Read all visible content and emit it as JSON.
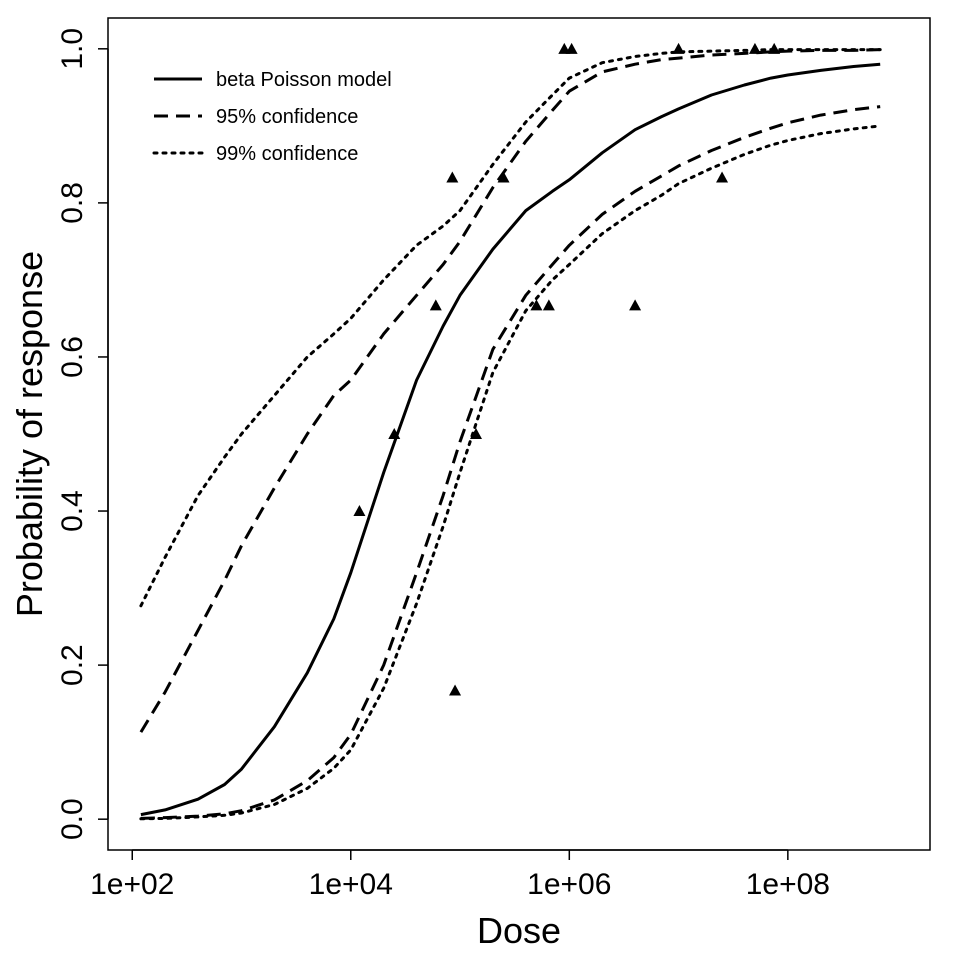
{
  "chart_data": {
    "type": "line",
    "xlabel": "Dose",
    "ylabel": "Probability of response",
    "xscale": "log10",
    "xlim": [
      60,
      2000000000
    ],
    "ylim": [
      -0.04,
      1.04
    ],
    "xticks": [
      100,
      10000,
      1000000,
      100000000
    ],
    "xtick_labels": [
      "1e+02",
      "1e+04",
      "1e+06",
      "1e+08"
    ],
    "yticks": [
      0.0,
      0.2,
      0.4,
      0.6,
      0.8,
      1.0
    ],
    "ytick_labels": [
      "0.0",
      "0.2",
      "0.4",
      "0.6",
      "0.8",
      "1.0"
    ],
    "legend_position": "top-left",
    "grid": false,
    "series": [
      {
        "name": "beta Poisson model",
        "style": "solid",
        "x": [
          120,
          200,
          400,
          700,
          1000,
          2000,
          4000,
          7000,
          10000,
          20000,
          40000,
          70000,
          100000,
          200000,
          400000,
          700000,
          1000000,
          2000000,
          4000000,
          7000000,
          10000000,
          20000000,
          40000000,
          70000000,
          100000000,
          200000000,
          400000000,
          700000000
        ],
        "y": [
          0.006,
          0.012,
          0.026,
          0.045,
          0.065,
          0.12,
          0.19,
          0.26,
          0.32,
          0.45,
          0.57,
          0.64,
          0.68,
          0.74,
          0.79,
          0.815,
          0.83,
          0.865,
          0.895,
          0.912,
          0.922,
          0.94,
          0.953,
          0.962,
          0.966,
          0.972,
          0.977,
          0.98
        ]
      },
      {
        "name": "95% confidence",
        "style": "dashed",
        "x": [
          120,
          200,
          400,
          700,
          1000,
          2000,
          4000,
          7000,
          10000,
          20000,
          40000,
          70000,
          100000,
          200000,
          400000,
          700000,
          1000000,
          2000000,
          4000000,
          7000000,
          10000000,
          20000000,
          40000000,
          70000000,
          100000000,
          200000000,
          400000000,
          700000000
        ],
        "y": [
          0.113,
          0.165,
          0.245,
          0.31,
          0.355,
          0.43,
          0.5,
          0.55,
          0.57,
          0.63,
          0.68,
          0.72,
          0.75,
          0.82,
          0.88,
          0.92,
          0.945,
          0.97,
          0.98,
          0.986,
          0.988,
          0.992,
          0.994,
          0.996,
          0.997,
          0.998,
          0.998,
          0.999
        ]
      },
      {
        "name": "",
        "style": "dashed",
        "x": [
          120,
          200,
          400,
          700,
          1000,
          2000,
          4000,
          7000,
          10000,
          20000,
          40000,
          70000,
          100000,
          200000,
          400000,
          700000,
          1000000,
          2000000,
          4000000,
          7000000,
          10000000,
          20000000,
          40000000,
          70000000,
          100000000,
          200000000,
          400000000,
          700000000
        ],
        "y": [
          0.001,
          0.002,
          0.004,
          0.007,
          0.011,
          0.025,
          0.05,
          0.08,
          0.11,
          0.2,
          0.32,
          0.42,
          0.49,
          0.61,
          0.68,
          0.72,
          0.745,
          0.785,
          0.815,
          0.835,
          0.848,
          0.868,
          0.885,
          0.897,
          0.904,
          0.914,
          0.921,
          0.925
        ]
      },
      {
        "name": "99% confidence",
        "style": "dotted",
        "x": [
          120,
          200,
          400,
          700,
          1000,
          2000,
          4000,
          7000,
          10000,
          20000,
          40000,
          70000,
          100000,
          200000,
          400000,
          700000,
          1000000,
          2000000,
          4000000,
          7000000,
          10000000,
          20000000,
          40000000,
          70000000,
          100000000,
          200000000,
          400000000,
          700000000
        ],
        "y": [
          0.277,
          0.34,
          0.42,
          0.47,
          0.5,
          0.55,
          0.6,
          0.63,
          0.65,
          0.7,
          0.745,
          0.77,
          0.79,
          0.85,
          0.905,
          0.94,
          0.962,
          0.982,
          0.99,
          0.994,
          0.996,
          0.997,
          0.998,
          0.999,
          0.999,
          0.999,
          0.999,
          0.999
        ]
      },
      {
        "name": "",
        "style": "dotted",
        "x": [
          120,
          200,
          400,
          700,
          1000,
          2000,
          4000,
          7000,
          10000,
          20000,
          40000,
          70000,
          100000,
          200000,
          400000,
          700000,
          1000000,
          2000000,
          4000000,
          7000000,
          10000000,
          20000000,
          40000000,
          70000000,
          100000000,
          200000000,
          400000000,
          700000000
        ],
        "y": [
          0.0005,
          0.001,
          0.003,
          0.005,
          0.008,
          0.019,
          0.04,
          0.066,
          0.09,
          0.17,
          0.28,
          0.38,
          0.45,
          0.58,
          0.66,
          0.7,
          0.72,
          0.76,
          0.79,
          0.81,
          0.825,
          0.845,
          0.863,
          0.875,
          0.881,
          0.89,
          0.896,
          0.9
        ]
      }
    ],
    "points": {
      "marker": "triangle",
      "x": [
        12000,
        25000,
        60000,
        85000,
        90000,
        140000,
        250000,
        500000,
        650000,
        900000,
        1050000,
        4000000,
        10000000,
        25000000,
        50000000,
        75000000
      ],
      "y": [
        0.4,
        0.5,
        0.667,
        0.833,
        0.167,
        0.5,
        0.833,
        0.667,
        0.667,
        1.0,
        1.0,
        0.667,
        1.0,
        0.833,
        1.0,
        1.0
      ]
    }
  }
}
